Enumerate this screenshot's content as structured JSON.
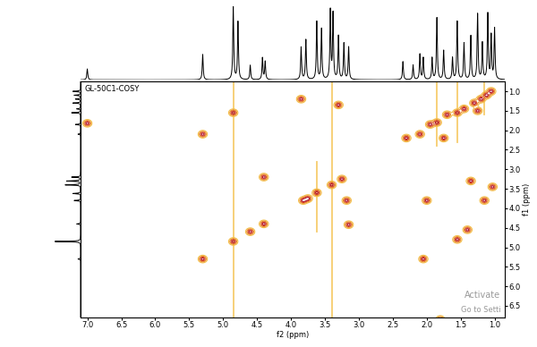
{
  "chart_data": {
    "type": "contour",
    "title": "GL-50C1-COSY",
    "x_label": "f2 (ppm)",
    "y_label": "f1 (ppm)",
    "xlim": [
      7.1,
      0.85
    ],
    "ylim": [
      6.8,
      0.75
    ],
    "xticks": [
      7.0,
      6.5,
      6.0,
      5.5,
      5.0,
      4.5,
      4.0,
      3.5,
      3.0,
      2.5,
      2.0,
      1.5,
      1.0
    ],
    "yticks": [
      1.0,
      1.5,
      2.0,
      2.5,
      3.0,
      3.5,
      4.0,
      4.5,
      5.0,
      5.5,
      6.0,
      6.5
    ],
    "colors": [
      "#f4c04a",
      "#eb8f2c",
      "#d9521f",
      "#b0102c"
    ],
    "peaks": [
      [
        7.0,
        1.82
      ],
      [
        5.3,
        2.1
      ],
      [
        5.3,
        5.3
      ],
      [
        4.85,
        1.55
      ],
      [
        4.85,
        4.85
      ],
      [
        4.6,
        4.6
      ],
      [
        4.4,
        3.2
      ],
      [
        4.4,
        4.4
      ],
      [
        3.85,
        1.2
      ],
      [
        3.82,
        3.8
      ],
      [
        3.75,
        3.75
      ],
      [
        3.62,
        3.6
      ],
      [
        3.4,
        3.4
      ],
      [
        3.3,
        1.35
      ],
      [
        3.25,
        3.25
      ],
      [
        3.18,
        3.8
      ],
      [
        3.15,
        4.42
      ],
      [
        2.3,
        2.2
      ],
      [
        2.1,
        2.1
      ],
      [
        2.0,
        3.8
      ],
      [
        2.05,
        5.3
      ],
      [
        1.95,
        1.85
      ],
      [
        1.85,
        1.8
      ],
      [
        1.75,
        2.2
      ],
      [
        1.7,
        1.6
      ],
      [
        1.55,
        4.8
      ],
      [
        1.55,
        1.55
      ],
      [
        1.4,
        4.55
      ],
      [
        1.45,
        1.45
      ],
      [
        1.35,
        3.3
      ],
      [
        1.3,
        1.3
      ],
      [
        1.25,
        1.5
      ],
      [
        1.2,
        1.2
      ],
      [
        1.15,
        3.8
      ],
      [
        1.12,
        1.1
      ],
      [
        1.05,
        1.0
      ],
      [
        1.03,
        3.45
      ],
      [
        1.8,
        6.85
      ]
    ],
    "t1_noise": [
      {
        "f2": 4.85,
        "f1": [
          0.75,
          6.8
        ]
      },
      {
        "f2": 3.4,
        "f1": [
          0.75,
          6.8
        ]
      },
      {
        "f2": 3.62,
        "f1": [
          2.8,
          4.6
        ]
      },
      {
        "f2": 1.55,
        "f1": [
          0.75,
          2.3
        ]
      },
      {
        "f2": 1.85,
        "f1": [
          0.75,
          2.4
        ]
      },
      {
        "f2": 1.15,
        "f1": [
          0.75,
          1.6
        ]
      }
    ],
    "f2_projection": {
      "ppm": [
        7.0,
        5.3,
        4.85,
        4.78,
        4.6,
        4.42,
        4.38,
        3.85,
        3.78,
        3.62,
        3.55,
        3.42,
        3.38,
        3.3,
        3.22,
        3.15,
        2.35,
        2.2,
        2.1,
        2.05,
        1.92,
        1.85,
        1.75,
        1.62,
        1.55,
        1.45,
        1.35,
        1.25,
        1.18,
        1.1,
        1.05,
        1.0
      ],
      "intensity": [
        0.15,
        0.35,
        1.0,
        0.8,
        0.2,
        0.3,
        0.25,
        0.45,
        0.55,
        0.8,
        0.7,
        0.95,
        0.9,
        0.6,
        0.5,
        0.45,
        0.25,
        0.2,
        0.35,
        0.3,
        0.3,
        0.85,
        0.4,
        0.3,
        0.8,
        0.5,
        0.6,
        0.9,
        0.5,
        0.9,
        0.6,
        0.7
      ]
    },
    "f1_projection": {
      "ppm": [
        1.0,
        1.1,
        1.2,
        1.3,
        1.45,
        1.55,
        1.85,
        2.1,
        3.2,
        3.3,
        3.4,
        3.62,
        3.8,
        4.4,
        4.85,
        5.3
      ],
      "intensity": [
        0.3,
        0.25,
        0.2,
        0.3,
        0.15,
        0.35,
        0.2,
        0.1,
        0.35,
        0.55,
        0.6,
        0.3,
        0.25,
        0.15,
        1.0,
        0.1
      ]
    },
    "watermark": [
      "Activate",
      "Go to Setti"
    ]
  }
}
